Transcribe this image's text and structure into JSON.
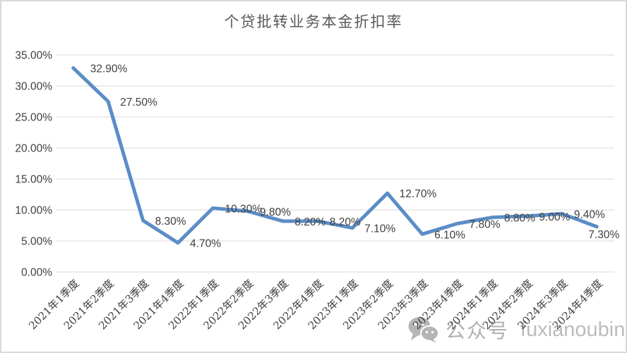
{
  "chart_data": {
    "type": "line",
    "title": "个贷批转业务本金折扣率",
    "categories": [
      "2021年1季度",
      "2021年2季度",
      "2021年3季度",
      "2021年4季度",
      "2022年1季度",
      "2022年2季度",
      "2022年3季度",
      "2022年4季度",
      "2023年1季度",
      "2023年2季度",
      "2023年3季度",
      "2023年4季度",
      "2024年1季度",
      "2024年2季度",
      "2024年3季度",
      "2024年4季度"
    ],
    "values": [
      32.9,
      27.5,
      8.3,
      4.7,
      10.3,
      9.8,
      8.2,
      8.2,
      7.1,
      12.7,
      6.1,
      7.8,
      8.8,
      9.0,
      9.4,
      7.3
    ],
    "data_labels": [
      "32.90%",
      "27.50%",
      "8.30%",
      "4.70%",
      "10.30%",
      "9.80%",
      "8.20%",
      "8.20%",
      "7.10%",
      "12.70%",
      "6.10%",
      "7.80%",
      "8.80%",
      "9.00%",
      "9.40%",
      "7.30%"
    ],
    "y_tick_labels": [
      "35.00%",
      "30.00%",
      "25.00%",
      "20.00%",
      "15.00%",
      "10.00%",
      "5.00%",
      "0.00%"
    ],
    "ylim": [
      0,
      35
    ],
    "y_tick_step": 5,
    "xlabel": "",
    "ylabel": "",
    "grid": true,
    "legend": "none"
  },
  "watermark": {
    "icon": "wechat-icon",
    "platform": "公众号",
    "account": "fuxianoubin"
  },
  "colors": {
    "line": "#5b8dc7",
    "gridline": "#d9d9d9",
    "axis_text": "#404040",
    "data_label_text": "#3f3f3f",
    "title_text": "#595959",
    "watermark": "#b5b5b5",
    "frame_border": "#d9d9d9",
    "background": "#ffffff"
  }
}
